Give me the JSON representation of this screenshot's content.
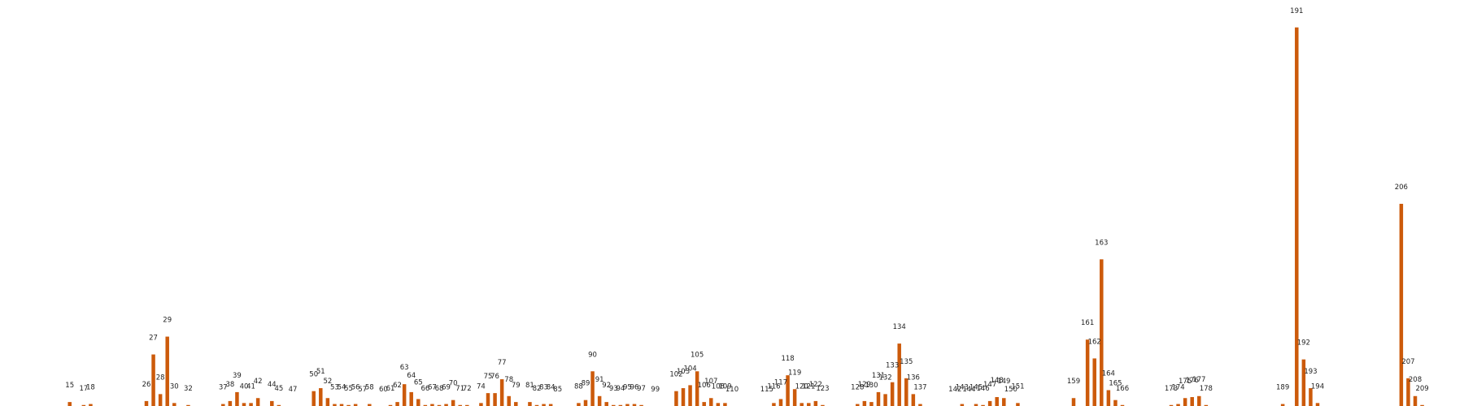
{
  "chart_data": {
    "type": "bar",
    "title": "",
    "xlabel": "",
    "ylabel": "",
    "bar_color": "#cc5a0b",
    "label_color": "#222222",
    "background": "#ffffff",
    "grid": false,
    "legend": "none",
    "x_domain": [
      5,
      215
    ],
    "ylim": [
      0,
      195
    ],
    "bars": [
      {
        "x": 15,
        "label": "15",
        "value": 2
      },
      {
        "x": 17,
        "label": "17",
        "value": 0.5
      },
      {
        "x": 18,
        "label": "18",
        "value": 1
      },
      {
        "x": 26,
        "label": "26",
        "value": 2.5
      },
      {
        "x": 27,
        "label": "27",
        "value": 26
      },
      {
        "x": 28,
        "label": "28",
        "value": 6
      },
      {
        "x": 29,
        "label": "29",
        "value": 35
      },
      {
        "x": 30,
        "label": "30",
        "value": 1.5
      },
      {
        "x": 32,
        "label": "32",
        "value": 0.5
      },
      {
        "x": 37,
        "label": "37",
        "value": 1
      },
      {
        "x": 38,
        "label": "38",
        "value": 2.5
      },
      {
        "x": 39,
        "label": "39",
        "value": 7
      },
      {
        "x": 40,
        "label": "40",
        "value": 1.5
      },
      {
        "x": 41,
        "label": "41",
        "value": 1.5
      },
      {
        "x": 42,
        "label": "42",
        "value": 4
      },
      {
        "x": 44,
        "label": "44",
        "value": 2.5
      },
      {
        "x": 45,
        "label": "45",
        "value": 0.5
      },
      {
        "x": 47,
        "label": "47",
        "value": 0
      },
      {
        "x": 50,
        "label": "50",
        "value": 7.5
      },
      {
        "x": 51,
        "label": "51",
        "value": 9
      },
      {
        "x": 52,
        "label": "52",
        "value": 4
      },
      {
        "x": 53,
        "label": "53",
        "value": 1
      },
      {
        "x": 54,
        "label": "54",
        "value": 1
      },
      {
        "x": 55,
        "label": "55",
        "value": 0.5
      },
      {
        "x": 56,
        "label": "56",
        "value": 1
      },
      {
        "x": 57,
        "label": "57",
        "value": 0
      },
      {
        "x": 58,
        "label": "58",
        "value": 1
      },
      {
        "x": 60,
        "label": "60",
        "value": 0
      },
      {
        "x": 61,
        "label": "61",
        "value": 0.5
      },
      {
        "x": 62,
        "label": "62",
        "value": 2
      },
      {
        "x": 63,
        "label": "63",
        "value": 11
      },
      {
        "x": 64,
        "label": "64",
        "value": 7
      },
      {
        "x": 65,
        "label": "65",
        "value": 3.5
      },
      {
        "x": 66,
        "label": "66",
        "value": 0.5
      },
      {
        "x": 67,
        "label": "67",
        "value": 1
      },
      {
        "x": 68,
        "label": "68",
        "value": 0.5
      },
      {
        "x": 69,
        "label": "69",
        "value": 1
      },
      {
        "x": 70,
        "label": "70",
        "value": 3
      },
      {
        "x": 71,
        "label": "71",
        "value": 0.5
      },
      {
        "x": 72,
        "label": "72",
        "value": 0.5
      },
      {
        "x": 74,
        "label": "74",
        "value": 1.5
      },
      {
        "x": 75,
        "label": "75",
        "value": 6.5
      },
      {
        "x": 76,
        "label": "76",
        "value": 6.5
      },
      {
        "x": 77,
        "label": "77",
        "value": 13.5
      },
      {
        "x": 78,
        "label": "78",
        "value": 5
      },
      {
        "x": 79,
        "label": "79",
        "value": 2
      },
      {
        "x": 81,
        "label": "81",
        "value": 2
      },
      {
        "x": 82,
        "label": "82",
        "value": 0.5
      },
      {
        "x": 83,
        "label": "83",
        "value": 1
      },
      {
        "x": 84,
        "label": "84",
        "value": 1
      },
      {
        "x": 85,
        "label": "85",
        "value": 0
      },
      {
        "x": 88,
        "label": "88",
        "value": 1.5
      },
      {
        "x": 89,
        "label": "89",
        "value": 3
      },
      {
        "x": 90,
        "label": "90",
        "value": 17.5
      },
      {
        "x": 91,
        "label": "91",
        "value": 5
      },
      {
        "x": 92,
        "label": "92",
        "value": 2
      },
      {
        "x": 93,
        "label": "93",
        "value": 0.5
      },
      {
        "x": 94,
        "label": "94",
        "value": 0.5
      },
      {
        "x": 95,
        "label": "95",
        "value": 1
      },
      {
        "x": 96,
        "label": "96",
        "value": 1
      },
      {
        "x": 97,
        "label": "97",
        "value": 0.5
      },
      {
        "x": 99,
        "label": "99",
        "value": 0
      },
      {
        "x": 102,
        "label": "102",
        "value": 7.5
      },
      {
        "x": 103,
        "label": "103",
        "value": 9
      },
      {
        "x": 104,
        "label": "104",
        "value": 10.5
      },
      {
        "x": 105,
        "label": "105",
        "value": 17.5
      },
      {
        "x": 106,
        "label": "106",
        "value": 2
      },
      {
        "x": 107,
        "label": "107",
        "value": 4
      },
      {
        "x": 108,
        "label": "108",
        "value": 1.5
      },
      {
        "x": 109,
        "label": "109",
        "value": 1.5
      },
      {
        "x": 110,
        "label": "110",
        "value": 0
      },
      {
        "x": 115,
        "label": "115",
        "value": 0
      },
      {
        "x": 116,
        "label": "116",
        "value": 1.5
      },
      {
        "x": 117,
        "label": "117",
        "value": 3.5
      },
      {
        "x": 118,
        "label": "118",
        "value": 15.5
      },
      {
        "x": 119,
        "label": "119",
        "value": 8.5
      },
      {
        "x": 120,
        "label": "120",
        "value": 1.5
      },
      {
        "x": 121,
        "label": "121",
        "value": 1.5
      },
      {
        "x": 122,
        "label": "122",
        "value": 2.5
      },
      {
        "x": 123,
        "label": "123",
        "value": 0.5
      },
      {
        "x": 128,
        "label": "128",
        "value": 1
      },
      {
        "x": 129,
        "label": "129",
        "value": 2.5
      },
      {
        "x": 130,
        "label": "130",
        "value": 2
      },
      {
        "x": 131,
        "label": "131",
        "value": 7
      },
      {
        "x": 132,
        "label": "132",
        "value": 6
      },
      {
        "x": 133,
        "label": "133",
        "value": 12
      },
      {
        "x": 134,
        "label": "134",
        "value": 31.5
      },
      {
        "x": 135,
        "label": "135",
        "value": 14
      },
      {
        "x": 136,
        "label": "136",
        "value": 6
      },
      {
        "x": 137,
        "label": "137",
        "value": 1
      },
      {
        "x": 142,
        "label": "142",
        "value": 0
      },
      {
        "x": 143,
        "label": "143",
        "value": 1
      },
      {
        "x": 144,
        "label": "144",
        "value": 0
      },
      {
        "x": 145,
        "label": "145",
        "value": 1
      },
      {
        "x": 146,
        "label": "146",
        "value": 0.5
      },
      {
        "x": 147,
        "label": "147",
        "value": 2.5
      },
      {
        "x": 148,
        "label": "148",
        "value": 4.5
      },
      {
        "x": 149,
        "label": "149",
        "value": 4
      },
      {
        "x": 150,
        "label": "150",
        "value": 0
      },
      {
        "x": 151,
        "label": "151",
        "value": 1.5
      },
      {
        "x": 159,
        "label": "159",
        "value": 4
      },
      {
        "x": 161,
        "label": "161",
        "value": 33.5
      },
      {
        "x": 162,
        "label": "162",
        "value": 24
      },
      {
        "x": 163,
        "label": "163",
        "value": 74
      },
      {
        "x": 164,
        "label": "164",
        "value": 8
      },
      {
        "x": 165,
        "label": "165",
        "value": 3
      },
      {
        "x": 166,
        "label": "166",
        "value": 0.5
      },
      {
        "x": 173,
        "label": "173",
        "value": 0.5
      },
      {
        "x": 174,
        "label": "174",
        "value": 1
      },
      {
        "x": 175,
        "label": "175",
        "value": 4
      },
      {
        "x": 176,
        "label": "176",
        "value": 4.5
      },
      {
        "x": 177,
        "label": "177",
        "value": 5
      },
      {
        "x": 178,
        "label": "178",
        "value": 0.5
      },
      {
        "x": 189,
        "label": "189",
        "value": 1
      },
      {
        "x": 191,
        "label": "191",
        "value": 191
      },
      {
        "x": 192,
        "label": "192",
        "value": 23.5
      },
      {
        "x": 193,
        "label": "193",
        "value": 9
      },
      {
        "x": 194,
        "label": "194",
        "value": 1.5
      },
      {
        "x": 206,
        "label": "206",
        "value": 102
      },
      {
        "x": 207,
        "label": "207",
        "value": 14
      },
      {
        "x": 208,
        "label": "208",
        "value": 5
      },
      {
        "x": 209,
        "label": "209",
        "value": 0.5
      }
    ]
  }
}
